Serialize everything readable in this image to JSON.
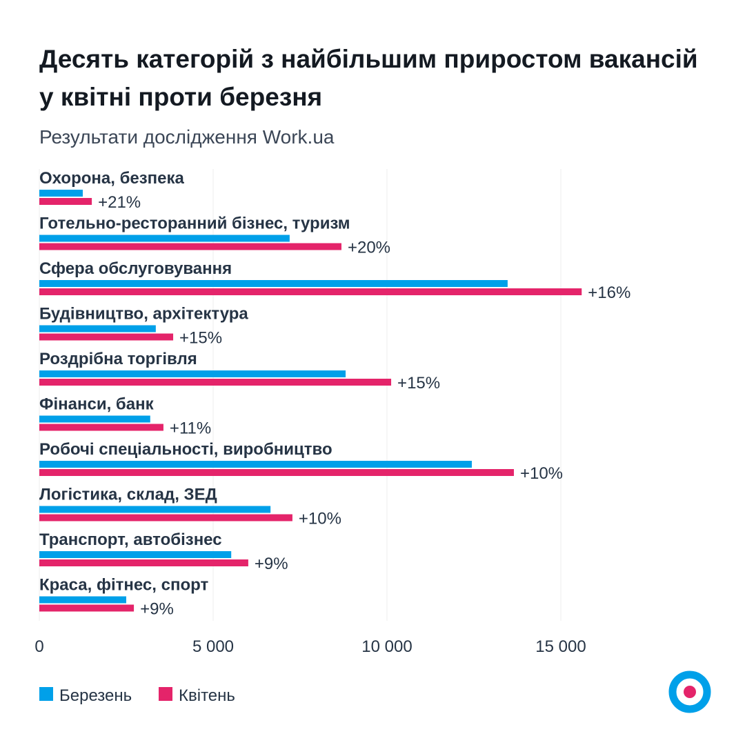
{
  "header": {
    "title": "Десять категорій з найбільшим приростом вакансій у квітні проти березня",
    "subtitle": "Результати дослідження Work.ua"
  },
  "colors": {
    "march": "#00a0e9",
    "april": "#e4246a",
    "text": "#263445",
    "grid": "#ececec"
  },
  "chart_data": {
    "type": "bar",
    "orientation": "horizontal",
    "title": "Десять категорій з найбільшим приростом вакансій у квітні проти березня",
    "subtitle": "Результати дослідження Work.ua",
    "categories": [
      "Охорона, безпека",
      "Готельно-ресторанний бізнес, туризм",
      "Сфера обслуговування",
      "Будівництво, архітектура",
      "Роздрібна торгівля",
      "Фінанси, банк",
      "Робочі спеціальності, виробництво",
      "Логістика, склад, ЗЕД",
      "Транспорт, автобізнес",
      "Краса, фітнес, спорт"
    ],
    "series": [
      {
        "name": "Березень",
        "color": "#00a0e9",
        "values": [
          1250,
          7200,
          13470,
          3350,
          8810,
          3190,
          12440,
          6650,
          5520,
          2500
        ]
      },
      {
        "name": "Квітень",
        "color": "#e4246a",
        "values": [
          1510,
          8690,
          15600,
          3850,
          10120,
          3570,
          13650,
          7280,
          6010,
          2720
        ]
      }
    ],
    "data_labels": [
      "+21%",
      "+20%",
      "+16%",
      "+15%",
      "+15%",
      "+11%",
      "+10%",
      "+10%",
      "+9%",
      "+9%"
    ],
    "xlim": [
      0,
      19000
    ],
    "xticks": [
      0,
      5000,
      10000,
      15000
    ],
    "xtick_labels": [
      "0",
      "5 000",
      "10 000",
      "15 000"
    ],
    "grid": "vertical",
    "legend": "bottom-left"
  }
}
